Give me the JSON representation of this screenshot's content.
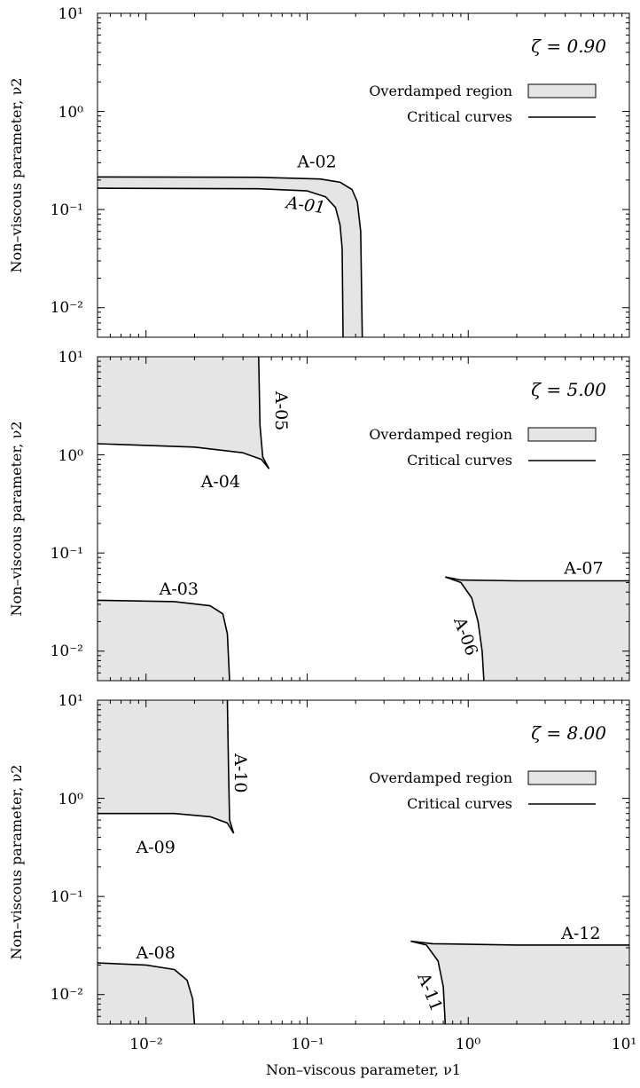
{
  "figure": {
    "xlabel": "Non–viscous parameter, ν1",
    "ylabel": "Non–viscous parameter, ν2",
    "xlim": [
      0.005,
      10
    ],
    "ylim": [
      0.005,
      10
    ],
    "xscale": "log",
    "yscale": "log",
    "xtick_labels": [
      "10⁻²",
      "10⁻¹",
      "10⁰",
      "10¹"
    ],
    "ytick_labels": [
      "10¹",
      "10⁰",
      "10⁻¹",
      "10⁻²"
    ],
    "legend": {
      "region": "Overdamped region",
      "curves": "Critical curves",
      "placement": "top-right"
    },
    "colors": {
      "fill": "#e5e5e5",
      "line": "#000000"
    }
  },
  "chart_data": [
    {
      "type": "area",
      "title": "ζ = 0.90",
      "regions": [
        {
          "name": "Overdamped region",
          "bounds": [
            "A-01",
            "A-02"
          ]
        }
      ],
      "curves": [
        {
          "name": "A-01",
          "points": [
            [
              0.005,
              0.165
            ],
            [
              0.05,
              0.163
            ],
            [
              0.1,
              0.155
            ],
            [
              0.13,
              0.135
            ],
            [
              0.15,
              0.105
            ],
            [
              0.16,
              0.07
            ],
            [
              0.165,
              0.04
            ],
            [
              0.167,
              0.005
            ]
          ]
        },
        {
          "name": "A-02",
          "points": [
            [
              0.005,
              0.215
            ],
            [
              0.05,
              0.213
            ],
            [
              0.12,
              0.205
            ],
            [
              0.16,
              0.19
            ],
            [
              0.19,
              0.16
            ],
            [
              0.205,
              0.12
            ],
            [
              0.215,
              0.06
            ],
            [
              0.22,
              0.005
            ]
          ]
        }
      ],
      "labels": [
        {
          "text": "A-01",
          "x": 0.098,
          "y": 0.108
        },
        {
          "text": "A-02",
          "x": 0.115,
          "y": 0.3
        }
      ]
    },
    {
      "type": "area",
      "title": "ζ = 5.00",
      "regions": [
        {
          "name": "Overdamped region",
          "bounds": [
            "A-04",
            "A-05"
          ]
        },
        {
          "name": "Overdamped region",
          "bounds": [
            "A-03"
          ]
        },
        {
          "name": "Overdamped region",
          "bounds": [
            "A-06",
            "A-07"
          ]
        }
      ],
      "curves": [
        {
          "name": "A-03",
          "points": [
            [
              0.005,
              0.033
            ],
            [
              0.015,
              0.032
            ],
            [
              0.025,
              0.029
            ],
            [
              0.03,
              0.024
            ],
            [
              0.032,
              0.015
            ],
            [
              0.033,
              0.005
            ]
          ]
        },
        {
          "name": "A-04",
          "points": [
            [
              0.005,
              1.3
            ],
            [
              0.02,
              1.2
            ],
            [
              0.04,
              1.05
            ],
            [
              0.052,
              0.9
            ],
            [
              0.058,
              0.72
            ]
          ]
        },
        {
          "name": "A-05",
          "points": [
            [
              0.058,
              0.72
            ],
            [
              0.053,
              0.95
            ],
            [
              0.051,
              2.0
            ],
            [
              0.05,
              10
            ]
          ]
        },
        {
          "name": "A-06",
          "points": [
            [
              0.72,
              0.057
            ],
            [
              0.9,
              0.05
            ],
            [
              1.05,
              0.035
            ],
            [
              1.15,
              0.02
            ],
            [
              1.22,
              0.01
            ],
            [
              1.25,
              0.005
            ]
          ]
        },
        {
          "name": "A-07",
          "points": [
            [
              0.72,
              0.057
            ],
            [
              0.9,
              0.053
            ],
            [
              2,
              0.052
            ],
            [
              10,
              0.052
            ]
          ]
        }
      ],
      "labels": [
        {
          "text": "A-03",
          "x": 0.016,
          "y": 0.042
        },
        {
          "text": "A-04",
          "x": 0.029,
          "y": 0.52
        },
        {
          "text": "A-05",
          "x": 0.068,
          "y": 2.8
        },
        {
          "text": "A-06",
          "x": 0.95,
          "y": 0.014
        },
        {
          "text": "A-07",
          "x": 5.2,
          "y": 0.068
        }
      ]
    },
    {
      "type": "area",
      "title": "ζ = 8.00",
      "regions": [
        {
          "name": "Overdamped region",
          "bounds": [
            "A-09",
            "A-10"
          ]
        },
        {
          "name": "Overdamped region",
          "bounds": [
            "A-08"
          ]
        },
        {
          "name": "Overdamped region",
          "bounds": [
            "A-11",
            "A-12"
          ]
        }
      ],
      "curves": [
        {
          "name": "A-08",
          "points": [
            [
              0.005,
              0.021
            ],
            [
              0.01,
              0.02
            ],
            [
              0.015,
              0.018
            ],
            [
              0.018,
              0.014
            ],
            [
              0.0195,
              0.009
            ],
            [
              0.02,
              0.005
            ]
          ]
        },
        {
          "name": "A-09",
          "points": [
            [
              0.005,
              0.7
            ],
            [
              0.015,
              0.7
            ],
            [
              0.025,
              0.65
            ],
            [
              0.032,
              0.56
            ],
            [
              0.035,
              0.44
            ]
          ]
        },
        {
          "name": "A-10",
          "points": [
            [
              0.035,
              0.44
            ],
            [
              0.033,
              0.6
            ],
            [
              0.0325,
              2.0
            ],
            [
              0.032,
              10
            ]
          ]
        },
        {
          "name": "A-11",
          "points": [
            [
              0.44,
              0.035
            ],
            [
              0.55,
              0.032
            ],
            [
              0.65,
              0.022
            ],
            [
              0.7,
              0.012
            ],
            [
              0.72,
              0.005
            ]
          ]
        },
        {
          "name": "A-12",
          "points": [
            [
              0.44,
              0.035
            ],
            [
              0.6,
              0.033
            ],
            [
              2,
              0.032
            ],
            [
              10,
              0.032
            ]
          ]
        }
      ],
      "labels": [
        {
          "text": "A-08",
          "x": 0.0115,
          "y": 0.026
        },
        {
          "text": "A-09",
          "x": 0.0115,
          "y": 0.31
        },
        {
          "text": "A-10",
          "x": 0.038,
          "y": 1.8
        },
        {
          "text": "A-11",
          "x": 0.57,
          "y": 0.0105
        },
        {
          "text": "A-12",
          "x": 5.0,
          "y": 0.041
        }
      ]
    }
  ]
}
